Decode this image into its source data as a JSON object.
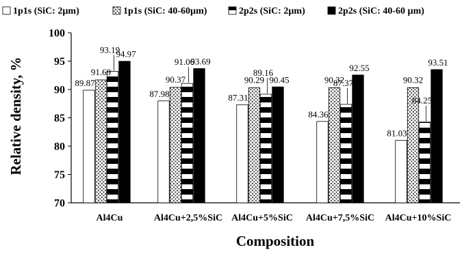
{
  "chart_data": {
    "type": "bar",
    "title": "",
    "xlabel": "Composition",
    "ylabel": "Relative density, %",
    "ylim": [
      70,
      100
    ],
    "yticks": [
      70,
      75,
      80,
      85,
      90,
      95,
      100
    ],
    "grid": "none",
    "legend_position": "top",
    "categories": [
      "Al4Cu",
      "Al4Cu+2,5%SiC",
      "Al4Cu+5%SiC",
      "Al4Cu+7,5%SiC",
      "Al4Cu+10%SiC"
    ],
    "series": [
      {
        "name": "1p1s (SiC: 2µm)",
        "pattern": "white",
        "values": [
          89.87,
          87.98,
          87.31,
          84.36,
          81.03
        ],
        "labels": [
          "89.87",
          "87.98",
          "87.31",
          "84.36",
          "81.03"
        ]
      },
      {
        "name": "1p1s (SiC: 40-60µm)",
        "pattern": "dots",
        "values": [
          91.69,
          90.37,
          90.29,
          90.32,
          90.32
        ],
        "labels": [
          "91.69",
          "90.37",
          "90.29",
          "90.32",
          "90.32"
        ]
      },
      {
        "name": "2p2s (SiC: 2µm)",
        "pattern": "stripes",
        "values": [
          93.19,
          91.06,
          89.16,
          87.37,
          84.25
        ],
        "labels": [
          "93.19",
          "91.06",
          "89.16",
          "87.37",
          "84.25"
        ]
      },
      {
        "name": "2p2s (SiC: 40-60 µm)",
        "pattern": "black",
        "values": [
          94.97,
          93.69,
          90.45,
          92.55,
          93.51
        ],
        "labels": [
          "94.97",
          "93.69",
          "90.45",
          "92.55",
          "93.51"
        ]
      }
    ],
    "colors": {
      "axis": "#000000",
      "bar_fill_white": "#ffffff",
      "bar_fill_black": "#000000",
      "dots": "#444444"
    }
  }
}
